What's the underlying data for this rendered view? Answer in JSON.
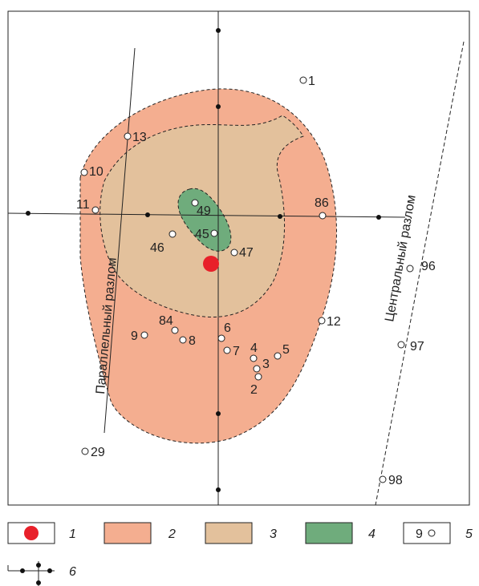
{
  "faults": {
    "parallel_label": "Параллельный разлом",
    "central_label": "Центральный разлом"
  },
  "wells": [
    {
      "id": "1",
      "label": "1"
    },
    {
      "id": "13",
      "label": "13"
    },
    {
      "id": "10",
      "label": "10"
    },
    {
      "id": "11",
      "label": "11"
    },
    {
      "id": "49",
      "label": "49"
    },
    {
      "id": "45",
      "label": "45"
    },
    {
      "id": "46",
      "label": "46"
    },
    {
      "id": "47",
      "label": "47"
    },
    {
      "id": "86",
      "label": "86"
    },
    {
      "id": "96",
      "label": "96"
    },
    {
      "id": "12",
      "label": "12"
    },
    {
      "id": "97",
      "label": "97"
    },
    {
      "id": "84",
      "label": "84"
    },
    {
      "id": "9",
      "label": "9"
    },
    {
      "id": "8",
      "label": "8"
    },
    {
      "id": "6",
      "label": "6"
    },
    {
      "id": "7",
      "label": "7"
    },
    {
      "id": "4",
      "label": "4"
    },
    {
      "id": "5",
      "label": "5"
    },
    {
      "id": "3",
      "label": "3"
    },
    {
      "id": "2",
      "label": "2"
    },
    {
      "id": "29",
      "label": "29"
    },
    {
      "id": "98",
      "label": "98"
    }
  ],
  "legend": [
    {
      "num": "1",
      "kind": "red-dot",
      "color": "#e8202a"
    },
    {
      "num": "2",
      "kind": "zone",
      "color": "#f4ae90"
    },
    {
      "num": "3",
      "kind": "zone",
      "color": "#e3c19c"
    },
    {
      "num": "4",
      "kind": "zone",
      "color": "#6fac7c"
    },
    {
      "num": "5",
      "kind": "well",
      "sample": "9"
    },
    {
      "num": "6",
      "kind": "profile"
    }
  ],
  "colors": {
    "zone_outer": "#f4ae90",
    "zone_middle": "#e3c19c",
    "zone_inner": "#6fac7c",
    "epicenter": "#e8202a"
  }
}
